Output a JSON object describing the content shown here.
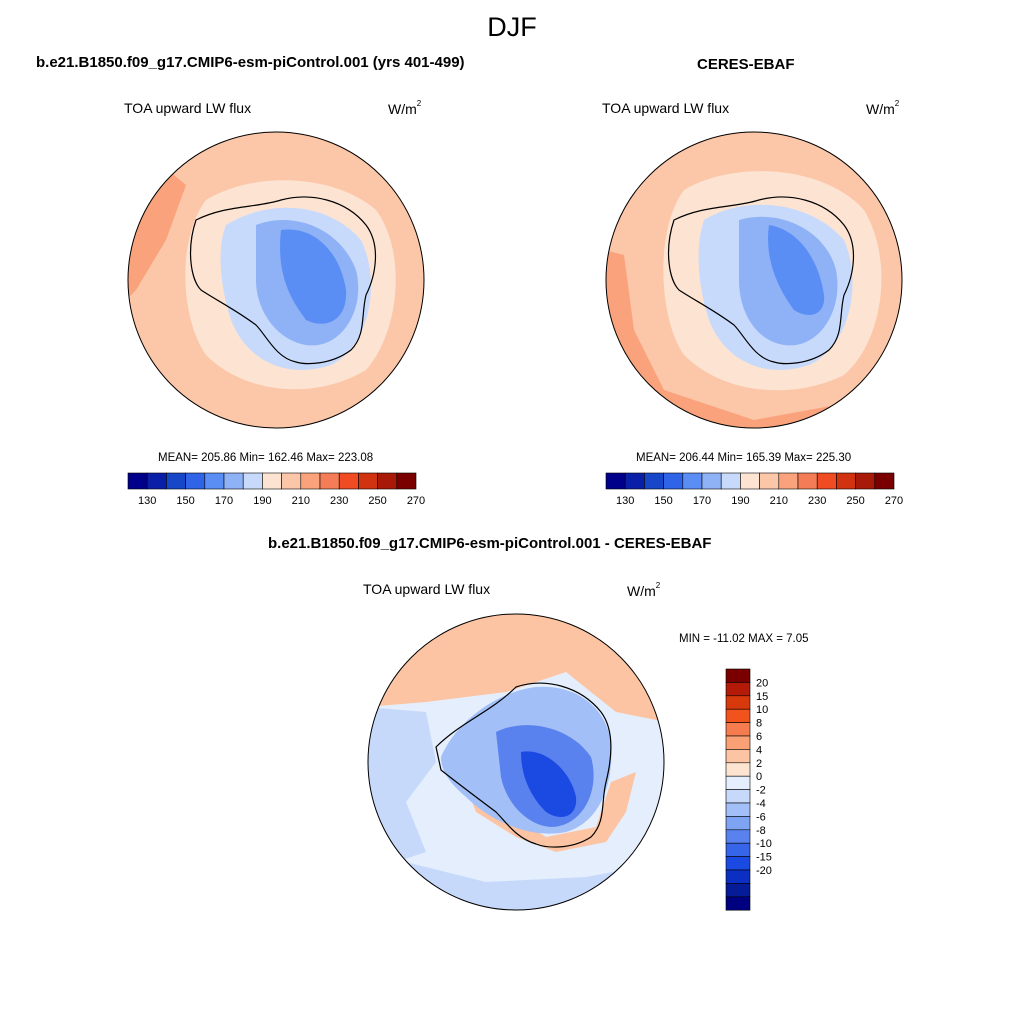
{
  "page": {
    "title": "DJF"
  },
  "panel_model": {
    "case_title": "b.e21.B1850.f09_g17.CMIP6-esm-piControl.001 (yrs 401-499)",
    "variable": "TOA upward LW flux",
    "units_base": "W/m",
    "units_exp": "2",
    "stats": "MEAN= 205.86  Min= 162.46  Max= 223.08"
  },
  "panel_obs": {
    "case_title": "CERES-EBAF",
    "variable": "TOA upward LW flux",
    "units_base": "W/m",
    "units_exp": "2",
    "stats": "MEAN= 206.44  Min= 165.39  Max= 225.30"
  },
  "panel_diff": {
    "case_title": "b.e21.B1850.f09_g17.CMIP6-esm-piControl.001 - CERES-EBAF",
    "variable": "TOA upward LW flux",
    "units_base": "W/m",
    "units_exp": "2",
    "stats": "MIN = -11.02 MAX =   7.05"
  },
  "colorbar_abs": {
    "colors": [
      "#00008b",
      "#0a1fa8",
      "#1846c8",
      "#2f63e8",
      "#5a8ef5",
      "#8fb2f7",
      "#c8dafb",
      "#fde4d2",
      "#fcc6a8",
      "#f9a27c",
      "#f47d57",
      "#f04b22",
      "#d1320f",
      "#a81a07",
      "#7a0000"
    ],
    "tick_labels": [
      "130",
      "150",
      "170",
      "190",
      "210",
      "230",
      "250",
      "270"
    ]
  },
  "colorbar_diff": {
    "colors": [
      "#7a0000",
      "#b31b08",
      "#d8390c",
      "#f2531c",
      "#f57c4e",
      "#f9a075",
      "#fcc4a3",
      "#fde4d0",
      "#e4eefc",
      "#c7d9fb",
      "#a3bff7",
      "#7ea3f3",
      "#5a82ee",
      "#3765ea",
      "#1a4ae2",
      "#0b2fc2",
      "#061b98",
      "#000080"
    ],
    "tick_labels": [
      "20",
      "15",
      "10",
      "8",
      "6",
      "4",
      "2",
      "0",
      "-2",
      "-4",
      "-6",
      "-8",
      "-10",
      "-15",
      "-20"
    ]
  },
  "chart_data": {
    "type": "heatmap",
    "title": "DJF",
    "panels": [
      {
        "name": "b.e21.B1850.f09_g17.CMIP6-esm-piControl.001 (yrs 401-499)",
        "variable": "TOA upward LW flux",
        "units": "W/m2",
        "mean": 205.86,
        "min": 162.46,
        "max": 223.08,
        "contour_levels": [
          130,
          140,
          150,
          160,
          170,
          180,
          190,
          200,
          210,
          220,
          230,
          240,
          250,
          260,
          270
        ]
      },
      {
        "name": "CERES-EBAF",
        "variable": "TOA upward LW flux",
        "units": "W/m2",
        "mean": 206.44,
        "min": 165.39,
        "max": 225.3,
        "contour_levels": [
          130,
          140,
          150,
          160,
          170,
          180,
          190,
          200,
          210,
          220,
          230,
          240,
          250,
          260,
          270
        ]
      },
      {
        "name": "b.e21.B1850.f09_g17.CMIP6-esm-piControl.001 - CERES-EBAF",
        "variable": "TOA upward LW flux",
        "units": "W/m2",
        "min": -11.02,
        "max": 7.05,
        "contour_levels": [
          -20,
          -15,
          -10,
          -8,
          -6,
          -4,
          -2,
          0,
          2,
          4,
          6,
          8,
          10,
          15,
          20
        ]
      }
    ]
  }
}
